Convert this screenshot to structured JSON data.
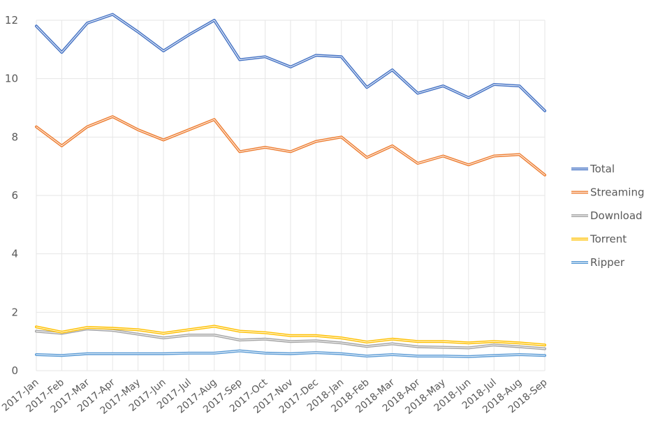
{
  "chart_data": {
    "type": "line",
    "x": [
      "2017-Jan",
      "2017-Feb",
      "2017-Mar",
      "2017-Apr",
      "2017-May",
      "2017-Jun",
      "2017-Jul",
      "2017-Aug",
      "2017-Sep",
      "2017-Oct",
      "2017-Nov",
      "2017-Dec",
      "2018-Jan",
      "2018-Feb",
      "2018-Mar",
      "2018-Apr",
      "2018-May",
      "2018-Jun",
      "2018-Jul",
      "2018-Aug",
      "2018-Sep"
    ],
    "ylim": [
      0,
      12
    ],
    "yticks": [
      "0",
      "2",
      "4",
      "6",
      "8",
      "10",
      "12"
    ],
    "grid": true,
    "legend": "right",
    "series": [
      {
        "name": "Total",
        "color": "#4472c4",
        "values": [
          11.8,
          10.9,
          11.9,
          12.2,
          11.6,
          10.95,
          11.5,
          12.0,
          10.65,
          10.75,
          10.4,
          10.8,
          10.75,
          9.7,
          10.3,
          9.5,
          9.75,
          9.35,
          9.8,
          9.75,
          8.9
        ]
      },
      {
        "name": "Streaming",
        "color": "#ed7d31",
        "values": [
          8.35,
          7.7,
          8.35,
          8.7,
          8.25,
          7.9,
          8.25,
          8.6,
          7.5,
          7.65,
          7.5,
          7.85,
          8.0,
          7.3,
          7.7,
          7.1,
          7.35,
          7.05,
          7.35,
          7.4,
          6.7
        ]
      },
      {
        "name": "Download",
        "color": "#a5a5a5",
        "values": [
          1.35,
          1.28,
          1.43,
          1.38,
          1.25,
          1.12,
          1.22,
          1.22,
          1.05,
          1.08,
          1.0,
          1.02,
          0.95,
          0.83,
          0.92,
          0.82,
          0.8,
          0.78,
          0.88,
          0.82,
          0.75
        ]
      },
      {
        "name": "Torrent",
        "color": "#ffc000",
        "values": [
          1.5,
          1.32,
          1.48,
          1.45,
          1.4,
          1.28,
          1.4,
          1.52,
          1.35,
          1.3,
          1.2,
          1.2,
          1.12,
          0.98,
          1.08,
          1.0,
          1.0,
          0.95,
          1.0,
          0.95,
          0.88
        ]
      },
      {
        "name": "Ripper",
        "color": "#5b9bd5",
        "values": [
          0.55,
          0.52,
          0.58,
          0.58,
          0.58,
          0.58,
          0.6,
          0.6,
          0.68,
          0.6,
          0.58,
          0.62,
          0.58,
          0.5,
          0.55,
          0.5,
          0.5,
          0.48,
          0.52,
          0.55,
          0.52
        ]
      }
    ]
  }
}
